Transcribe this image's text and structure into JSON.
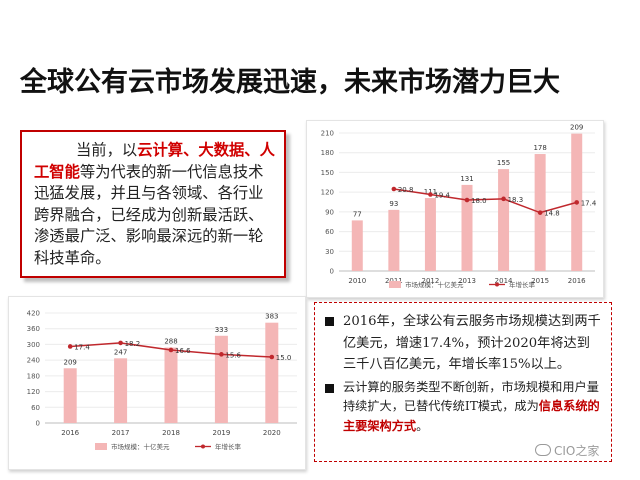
{
  "title": "全球公有云市场发展迅速，未来市场潜力巨大",
  "intro": {
    "part1": "当前，以",
    "highlight1": "云计算、大数据、人工智能",
    "part2": "等为代表的新一代信息技术迅猛发展，并且与各领域、各行业跨界融合，已经成为创新最活跃、渗透最广泛、影响最深远的新一轮科技革命。"
  },
  "points": [
    {
      "text": "2016年，全球公有云服务市场规模达到两千亿美元，增速17.4%，预计2020年将达到三千八百亿美元，年增长率15%以上。"
    },
    {
      "text": "云计算的服务类型不断创新，市场规模和用户量持续扩大，已替代传统IT模式，成为",
      "highlight": "信息系统的主要架构方式",
      "end": "。"
    }
  ],
  "watermark": "CIO之家",
  "colors": {
    "bar": "#f4b6b6",
    "line": "#c0282d",
    "accent": "#c00000"
  },
  "chart_data": [
    {
      "type": "bar+line",
      "categories": [
        "2010",
        "2011",
        "2012",
        "2013",
        "2014",
        "2015",
        "2016"
      ],
      "series": [
        {
          "name": "市场规模：十亿美元",
          "type": "bar",
          "values": [
            77,
            93,
            111,
            131,
            155,
            178,
            209
          ],
          "labels": [
            "77",
            "93",
            "111",
            "131",
            "155",
            "178",
            "209"
          ]
        },
        {
          "name": "年增长率",
          "type": "line",
          "values": [
            null,
            20.8,
            19.4,
            18.0,
            18.3,
            14.8,
            17.4
          ],
          "labels": [
            "",
            "20.8",
            "19.4",
            "18.0",
            "18.3",
            "14.8",
            "17.4"
          ]
        }
      ],
      "yticks": [
        "0",
        "30",
        "60",
        "90",
        "120",
        "150",
        "180",
        "210"
      ],
      "ylim": [
        0,
        210
      ],
      "line_ylim": [
        0,
        35
      ],
      "legend_position": "bottom"
    },
    {
      "type": "bar+line",
      "categories": [
        "2016",
        "2017",
        "2018",
        "2019",
        "2020"
      ],
      "series": [
        {
          "name": "市场规模：十亿美元",
          "type": "bar",
          "values": [
            209,
            247,
            288,
            333,
            383
          ],
          "labels": [
            "209",
            "247",
            "288",
            "333",
            "383"
          ]
        },
        {
          "name": "年增长率",
          "type": "line",
          "values": [
            17.4,
            18.2,
            16.6,
            15.6,
            15.0
          ],
          "labels": [
            "17.4",
            "18.2",
            "16.6",
            "15.6",
            "15.0"
          ]
        }
      ],
      "yticks": [
        "0",
        "60",
        "120",
        "180",
        "240",
        "300",
        "360",
        "420"
      ],
      "ylim": [
        0,
        420
      ],
      "line_ylim": [
        0,
        25
      ],
      "legend_position": "bottom"
    }
  ]
}
